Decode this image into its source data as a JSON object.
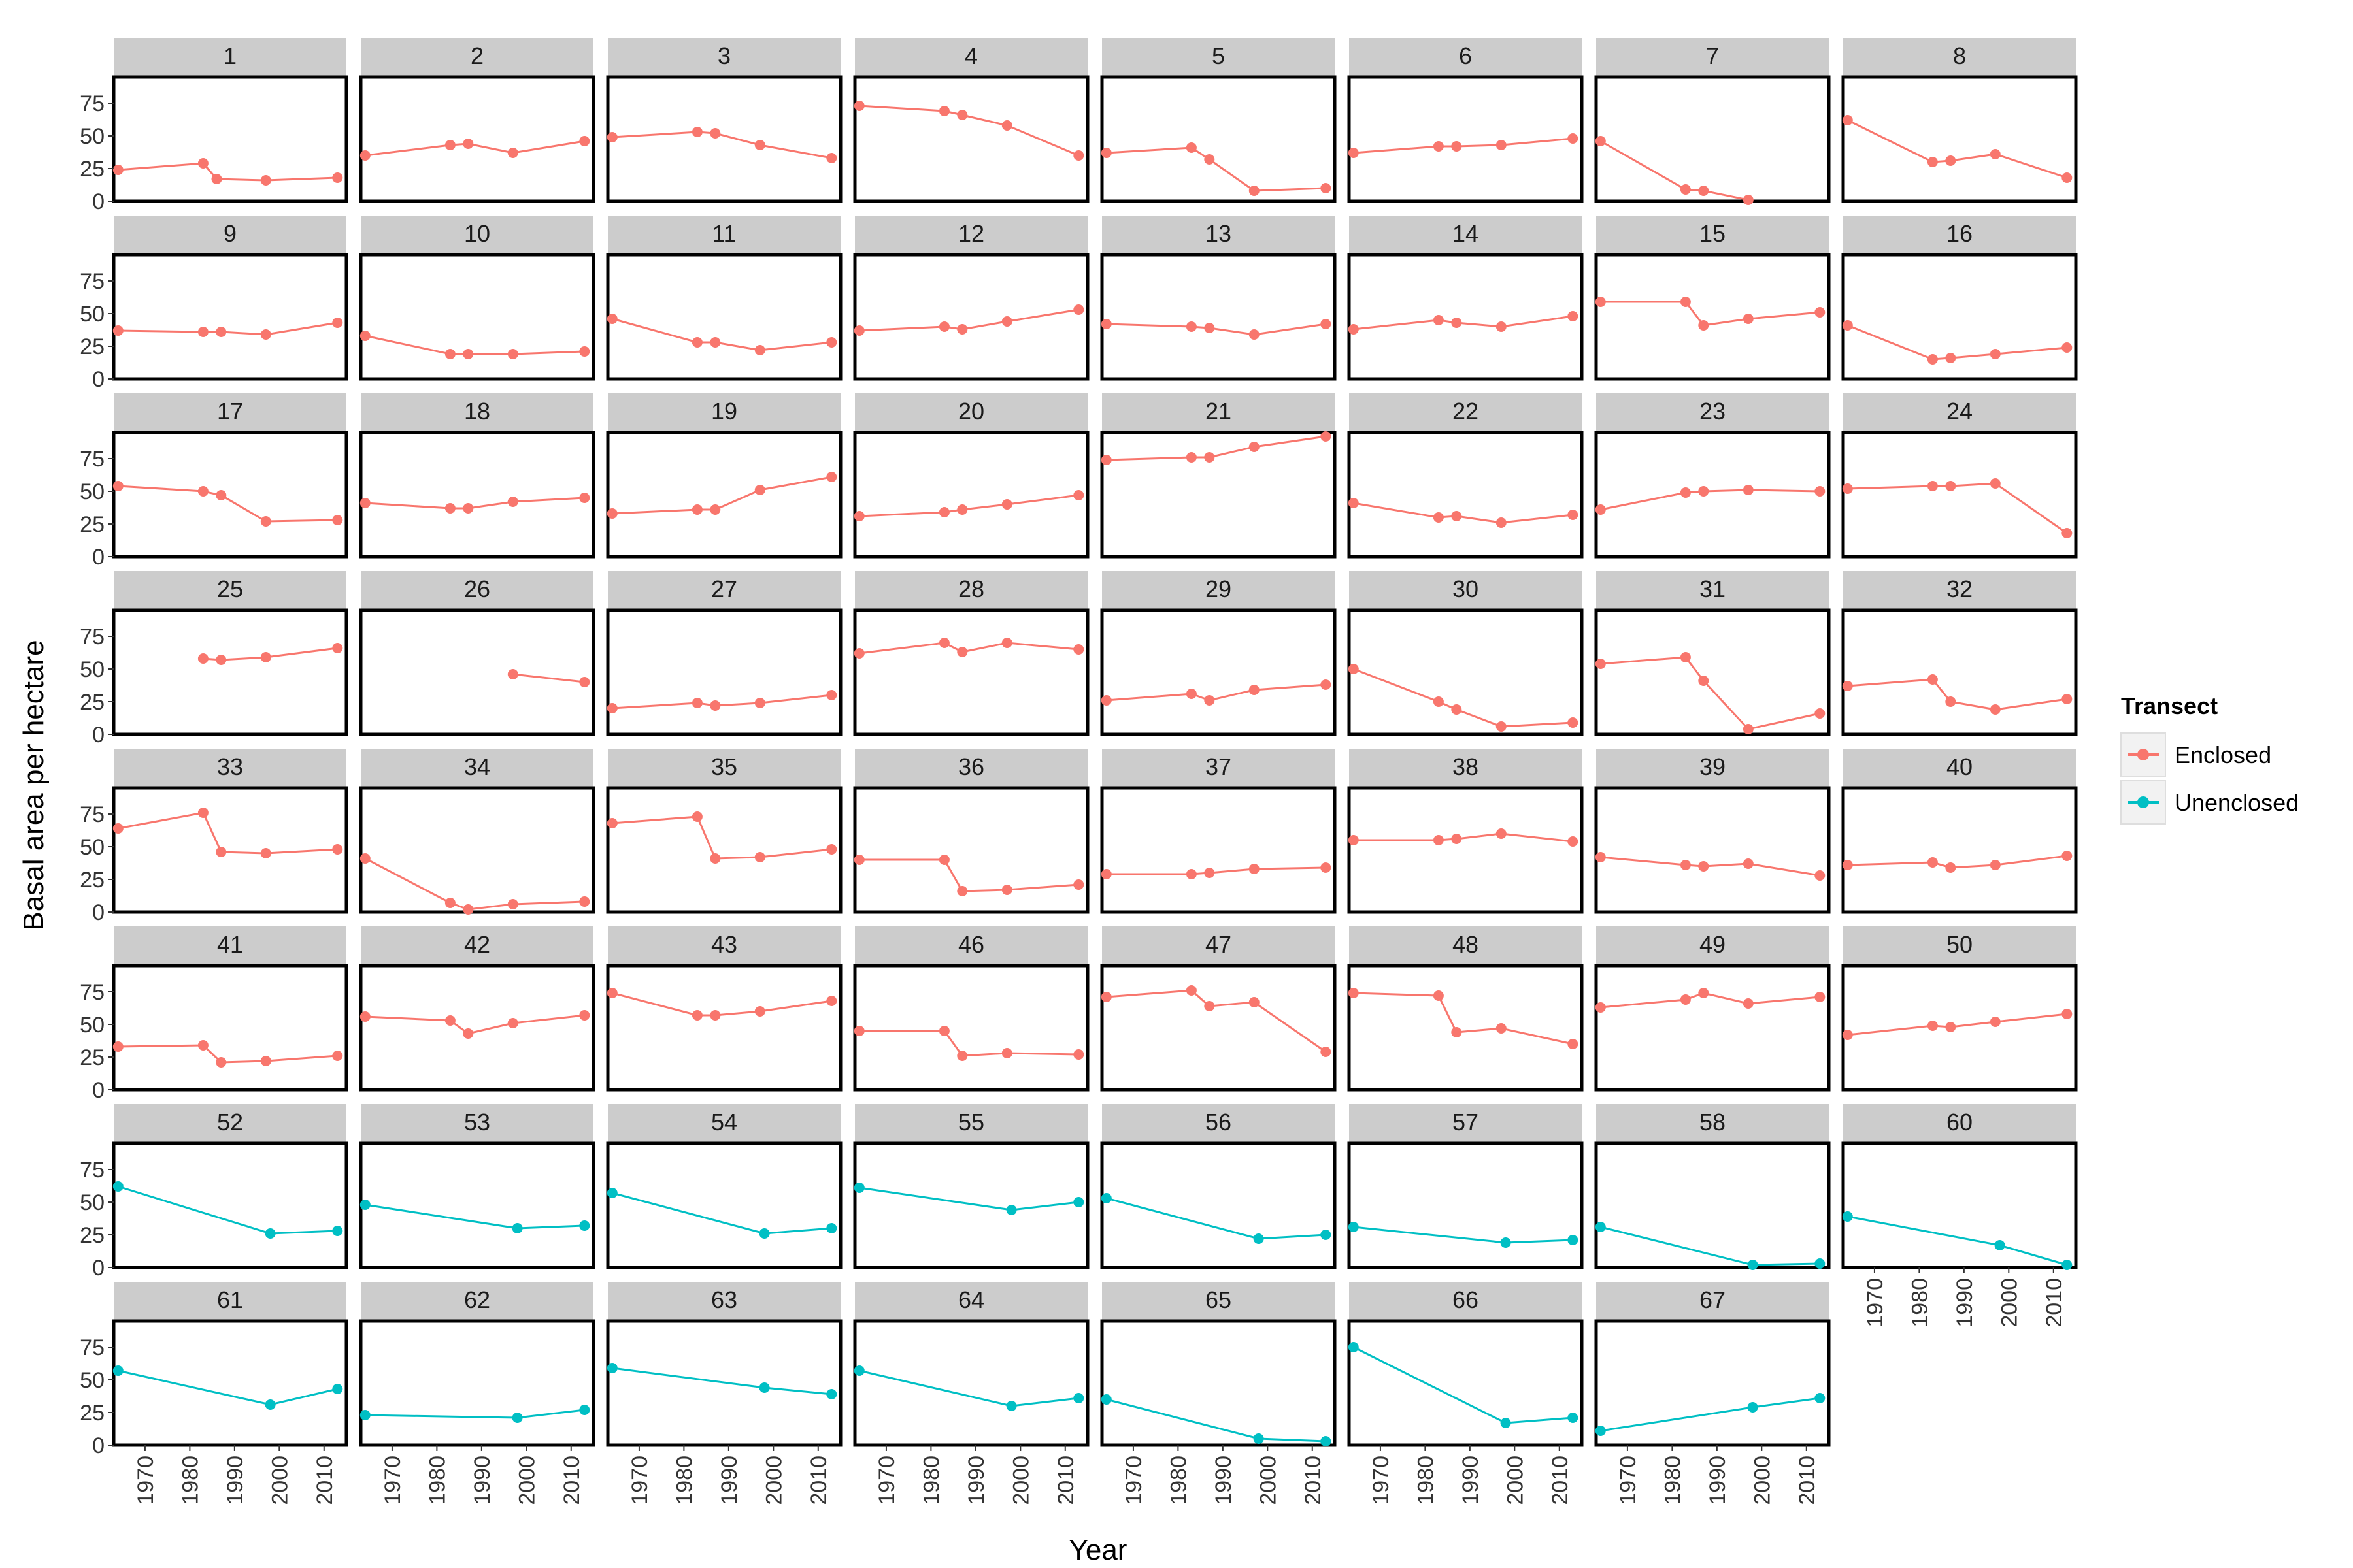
{
  "chart_data": {
    "type": "line",
    "facet_by": "Transect number",
    "xlabel": "Year",
    "ylabel": "Basal area per hectare",
    "xlim": [
      1963,
      2015
    ],
    "ylim": [
      0,
      95
    ],
    "x_ticks": [
      1970,
      1980,
      1990,
      2000,
      2010
    ],
    "y_ticks": [
      0,
      25,
      50,
      75
    ],
    "grid": false,
    "legend": {
      "title": "Transect",
      "position": "right",
      "entries": [
        {
          "name": "Enclosed",
          "color": "#F8766D"
        },
        {
          "name": "Unenclosed",
          "color": "#00BFC4"
        }
      ]
    },
    "panels": [
      {
        "label": "1",
        "group": "Enclosed",
        "x": [
          1964,
          1983,
          1986,
          1997,
          2013
        ],
        "y": [
          24,
          29,
          17,
          16,
          18
        ]
      },
      {
        "label": "2",
        "group": "Enclosed",
        "x": [
          1964,
          1983,
          1987,
          1997,
          2013
        ],
        "y": [
          35,
          43,
          44,
          37,
          46
        ]
      },
      {
        "label": "3",
        "group": "Enclosed",
        "x": [
          1964,
          1983,
          1987,
          1997,
          2013
        ],
        "y": [
          49,
          53,
          52,
          43,
          33
        ]
      },
      {
        "label": "4",
        "group": "Enclosed",
        "x": [
          1964,
          1983,
          1987,
          1997,
          2013
        ],
        "y": [
          73,
          69,
          66,
          58,
          35
        ]
      },
      {
        "label": "5",
        "group": "Enclosed",
        "x": [
          1964,
          1983,
          1987,
          1997,
          2013
        ],
        "y": [
          37,
          41,
          32,
          8,
          10
        ]
      },
      {
        "label": "6",
        "group": "Enclosed",
        "x": [
          1964,
          1983,
          1987,
          1997,
          2013
        ],
        "y": [
          37,
          42,
          42,
          43,
          48
        ]
      },
      {
        "label": "7",
        "group": "Enclosed",
        "x": [
          1964,
          1983,
          1987,
          1997
        ],
        "y": [
          46,
          9,
          8,
          1
        ]
      },
      {
        "label": "8",
        "group": "Enclosed",
        "x": [
          1964,
          1983,
          1987,
          1997,
          2013
        ],
        "y": [
          62,
          30,
          31,
          36,
          18
        ]
      },
      {
        "label": "9",
        "group": "Enclosed",
        "x": [
          1964,
          1983,
          1987,
          1997,
          2013
        ],
        "y": [
          37,
          36,
          36,
          34,
          43
        ]
      },
      {
        "label": "10",
        "group": "Enclosed",
        "x": [
          1964,
          1983,
          1987,
          1997,
          2013
        ],
        "y": [
          33,
          19,
          19,
          19,
          21
        ]
      },
      {
        "label": "11",
        "group": "Enclosed",
        "x": [
          1964,
          1983,
          1987,
          1997,
          2013
        ],
        "y": [
          46,
          28,
          28,
          22,
          28
        ]
      },
      {
        "label": "12",
        "group": "Enclosed",
        "x": [
          1964,
          1983,
          1987,
          1997,
          2013
        ],
        "y": [
          37,
          40,
          38,
          44,
          53
        ]
      },
      {
        "label": "13",
        "group": "Enclosed",
        "x": [
          1964,
          1983,
          1987,
          1997,
          2013
        ],
        "y": [
          42,
          40,
          39,
          34,
          42
        ]
      },
      {
        "label": "14",
        "group": "Enclosed",
        "x": [
          1964,
          1983,
          1987,
          1997,
          2013
        ],
        "y": [
          38,
          45,
          43,
          40,
          48
        ]
      },
      {
        "label": "15",
        "group": "Enclosed",
        "x": [
          1964,
          1983,
          1987,
          1997,
          2013
        ],
        "y": [
          59,
          59,
          41,
          46,
          51
        ]
      },
      {
        "label": "16",
        "group": "Enclosed",
        "x": [
          1964,
          1983,
          1987,
          1997,
          2013
        ],
        "y": [
          41,
          15,
          16,
          19,
          24
        ]
      },
      {
        "label": "17",
        "group": "Enclosed",
        "x": [
          1964,
          1983,
          1987,
          1997,
          2013
        ],
        "y": [
          54,
          50,
          47,
          27,
          28
        ]
      },
      {
        "label": "18",
        "group": "Enclosed",
        "x": [
          1964,
          1983,
          1987,
          1997,
          2013
        ],
        "y": [
          41,
          37,
          37,
          42,
          45
        ]
      },
      {
        "label": "19",
        "group": "Enclosed",
        "x": [
          1964,
          1983,
          1987,
          1997,
          2013
        ],
        "y": [
          33,
          36,
          36,
          51,
          61
        ]
      },
      {
        "label": "20",
        "group": "Enclosed",
        "x": [
          1964,
          1983,
          1987,
          1997,
          2013
        ],
        "y": [
          31,
          34,
          36,
          40,
          47
        ]
      },
      {
        "label": "21",
        "group": "Enclosed",
        "x": [
          1964,
          1983,
          1987,
          1997,
          2013
        ],
        "y": [
          74,
          76,
          76,
          84,
          92
        ]
      },
      {
        "label": "22",
        "group": "Enclosed",
        "x": [
          1964,
          1983,
          1987,
          1997,
          2013
        ],
        "y": [
          41,
          30,
          31,
          26,
          32
        ]
      },
      {
        "label": "23",
        "group": "Enclosed",
        "x": [
          1964,
          1983,
          1987,
          1997,
          2013
        ],
        "y": [
          36,
          49,
          50,
          51,
          50
        ]
      },
      {
        "label": "24",
        "group": "Enclosed",
        "x": [
          1964,
          1983,
          1987,
          1997,
          2013
        ],
        "y": [
          52,
          54,
          54,
          56,
          18
        ]
      },
      {
        "label": "25",
        "group": "Enclosed",
        "x": [
          1983,
          1987,
          1997,
          2013
        ],
        "y": [
          58,
          57,
          59,
          66
        ]
      },
      {
        "label": "26",
        "group": "Enclosed",
        "x": [
          1997,
          2013
        ],
        "y": [
          46,
          40
        ]
      },
      {
        "label": "27",
        "group": "Enclosed",
        "x": [
          1964,
          1983,
          1987,
          1997,
          2013
        ],
        "y": [
          20,
          24,
          22,
          24,
          30
        ]
      },
      {
        "label": "28",
        "group": "Enclosed",
        "x": [
          1964,
          1983,
          1987,
          1997,
          2013
        ],
        "y": [
          62,
          70,
          63,
          70,
          65
        ]
      },
      {
        "label": "29",
        "group": "Enclosed",
        "x": [
          1964,
          1983,
          1987,
          1997,
          2013
        ],
        "y": [
          26,
          31,
          26,
          34,
          38
        ]
      },
      {
        "label": "30",
        "group": "Enclosed",
        "x": [
          1964,
          1983,
          1987,
          1997,
          2013
        ],
        "y": [
          50,
          25,
          19,
          6,
          9
        ]
      },
      {
        "label": "31",
        "group": "Enclosed",
        "x": [
          1964,
          1983,
          1987,
          1997,
          2013
        ],
        "y": [
          54,
          59,
          41,
          4,
          16
        ]
      },
      {
        "label": "32",
        "group": "Enclosed",
        "x": [
          1964,
          1983,
          1987,
          1997,
          2013
        ],
        "y": [
          37,
          42,
          25,
          19,
          27
        ]
      },
      {
        "label": "33",
        "group": "Enclosed",
        "x": [
          1964,
          1983,
          1987,
          1997,
          2013
        ],
        "y": [
          64,
          76,
          46,
          45,
          48
        ]
      },
      {
        "label": "34",
        "group": "Enclosed",
        "x": [
          1964,
          1983,
          1987,
          1997,
          2013
        ],
        "y": [
          41,
          7,
          2,
          6,
          8
        ]
      },
      {
        "label": "35",
        "group": "Enclosed",
        "x": [
          1964,
          1983,
          1987,
          1997,
          2013
        ],
        "y": [
          68,
          73,
          41,
          42,
          48
        ]
      },
      {
        "label": "36",
        "group": "Enclosed",
        "x": [
          1964,
          1983,
          1987,
          1997,
          2013
        ],
        "y": [
          40,
          40,
          16,
          17,
          21
        ]
      },
      {
        "label": "37",
        "group": "Enclosed",
        "x": [
          1964,
          1983,
          1987,
          1997,
          2013
        ],
        "y": [
          29,
          29,
          30,
          33,
          34
        ]
      },
      {
        "label": "38",
        "group": "Enclosed",
        "x": [
          1964,
          1983,
          1987,
          1997,
          2013
        ],
        "y": [
          55,
          55,
          56,
          60,
          54
        ]
      },
      {
        "label": "39",
        "group": "Enclosed",
        "x": [
          1964,
          1983,
          1987,
          1997,
          2013
        ],
        "y": [
          42,
          36,
          35,
          37,
          28
        ]
      },
      {
        "label": "40",
        "group": "Enclosed",
        "x": [
          1964,
          1983,
          1987,
          1997,
          2013
        ],
        "y": [
          36,
          38,
          34,
          36,
          43
        ]
      },
      {
        "label": "41",
        "group": "Enclosed",
        "x": [
          1964,
          1983,
          1987,
          1997,
          2013
        ],
        "y": [
          33,
          34,
          21,
          22,
          26
        ]
      },
      {
        "label": "42",
        "group": "Enclosed",
        "x": [
          1964,
          1983,
          1987,
          1997,
          2013
        ],
        "y": [
          56,
          53,
          43,
          51,
          57
        ]
      },
      {
        "label": "43",
        "group": "Enclosed",
        "x": [
          1964,
          1983,
          1987,
          1997,
          2013
        ],
        "y": [
          74,
          57,
          57,
          60,
          68
        ]
      },
      {
        "label": "46",
        "group": "Enclosed",
        "x": [
          1964,
          1983,
          1987,
          1997,
          2013
        ],
        "y": [
          45,
          45,
          26,
          28,
          27
        ]
      },
      {
        "label": "47",
        "group": "Enclosed",
        "x": [
          1964,
          1983,
          1987,
          1997,
          2013
        ],
        "y": [
          71,
          76,
          64,
          67,
          29
        ]
      },
      {
        "label": "48",
        "group": "Enclosed",
        "x": [
          1964,
          1983,
          1987,
          1997,
          2013
        ],
        "y": [
          74,
          72,
          44,
          47,
          35
        ]
      },
      {
        "label": "49",
        "group": "Enclosed",
        "x": [
          1964,
          1983,
          1987,
          1997,
          2013
        ],
        "y": [
          63,
          69,
          74,
          66,
          71
        ]
      },
      {
        "label": "50",
        "group": "Enclosed",
        "x": [
          1964,
          1983,
          1987,
          1997,
          2013
        ],
        "y": [
          42,
          49,
          48,
          52,
          58
        ]
      },
      {
        "label": "52",
        "group": "Unenclosed",
        "x": [
          1964,
          1998,
          2013
        ],
        "y": [
          62,
          26,
          28
        ]
      },
      {
        "label": "53",
        "group": "Unenclosed",
        "x": [
          1964,
          1998,
          2013
        ],
        "y": [
          48,
          30,
          32
        ]
      },
      {
        "label": "54",
        "group": "Unenclosed",
        "x": [
          1964,
          1998,
          2013
        ],
        "y": [
          57,
          26,
          30
        ]
      },
      {
        "label": "55",
        "group": "Unenclosed",
        "x": [
          1964,
          1998,
          2013
        ],
        "y": [
          61,
          44,
          50
        ]
      },
      {
        "label": "56",
        "group": "Unenclosed",
        "x": [
          1964,
          1998,
          2013
        ],
        "y": [
          53,
          22,
          25
        ]
      },
      {
        "label": "57",
        "group": "Unenclosed",
        "x": [
          1964,
          1998,
          2013
        ],
        "y": [
          31,
          19,
          21
        ]
      },
      {
        "label": "58",
        "group": "Unenclosed",
        "x": [
          1964,
          1998,
          2013
        ],
        "y": [
          31,
          2,
          3
        ]
      },
      {
        "label": "60",
        "group": "Unenclosed",
        "x": [
          1964,
          1998,
          2013
        ],
        "y": [
          39,
          17,
          2
        ]
      },
      {
        "label": "61",
        "group": "Unenclosed",
        "x": [
          1964,
          1998,
          2013
        ],
        "y": [
          57,
          31,
          43
        ]
      },
      {
        "label": "62",
        "group": "Unenclosed",
        "x": [
          1964,
          1998,
          2013
        ],
        "y": [
          23,
          21,
          27
        ]
      },
      {
        "label": "63",
        "group": "Unenclosed",
        "x": [
          1964,
          1998,
          2013
        ],
        "y": [
          59,
          44,
          39
        ]
      },
      {
        "label": "64",
        "group": "Unenclosed",
        "x": [
          1964,
          1998,
          2013
        ],
        "y": [
          57,
          30,
          36
        ]
      },
      {
        "label": "65",
        "group": "Unenclosed",
        "x": [
          1964,
          1998,
          2013
        ],
        "y": [
          35,
          5,
          3
        ]
      },
      {
        "label": "66",
        "group": "Unenclosed",
        "x": [
          1964,
          1998,
          2013
        ],
        "y": [
          75,
          17,
          21
        ]
      },
      {
        "label": "67",
        "group": "Unenclosed",
        "x": [
          1964,
          1998,
          2013
        ],
        "y": [
          11,
          29,
          36
        ]
      }
    ]
  }
}
